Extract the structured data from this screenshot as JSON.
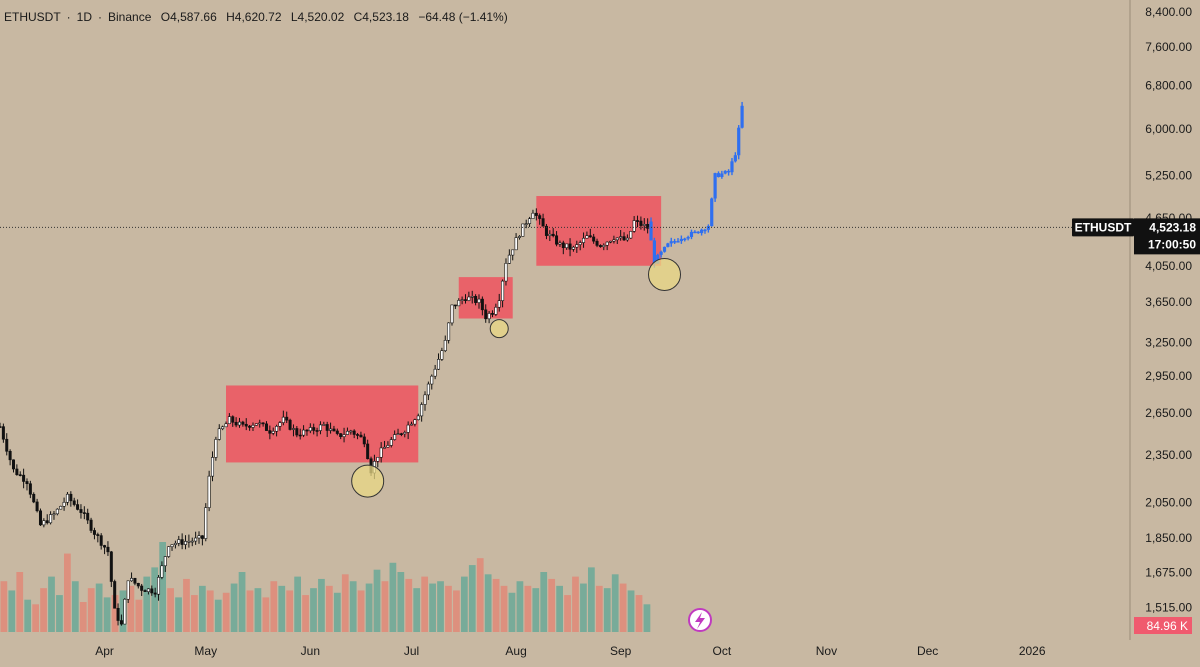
{
  "header": {
    "symbol": "ETHUSDT",
    "sep1": "·",
    "interval": "1D",
    "sep2": "·",
    "exchange": "Binance",
    "open": "O4,587.66",
    "high": "H4,620.72",
    "low": "L4,520.02",
    "close": "C4,523.18",
    "change": "−64.48 (−1.41%)"
  },
  "colors": {
    "background": "#c8b8a2",
    "candle": "#111111",
    "projection": "#2f6ff0",
    "zone": "#ec5a64",
    "circle_fill": "#ead884",
    "circle_stroke": "#333333",
    "vol_up": "#6aa898",
    "vol_down": "#e08878"
  },
  "chart_data": {
    "type": "candlestick",
    "symbol": "ETHUSDT",
    "interval": "1D",
    "exchange": "Binance",
    "y_scale": "log",
    "ylim": [
      1380,
      8700
    ],
    "y_ticks": [
      "8,400.00",
      "7,600.00",
      "6,800.00",
      "6,000.00",
      "5,250.00",
      "4,650.00",
      "4,050.00",
      "3,650.00",
      "3,250.00",
      "2,950.00",
      "2,650.00",
      "2,350.00",
      "2,050.00",
      "1,850.00",
      "1,675.00",
      "1,515.00"
    ],
    "y_tick_values": [
      8400,
      7600,
      6800,
      6000,
      5250,
      4650,
      4050,
      3650,
      3250,
      2950,
      2650,
      2350,
      2050,
      1850,
      1675,
      1515
    ],
    "x_ticks": [
      "Apr",
      "May",
      "Jun",
      "Jul",
      "Aug",
      "Sep",
      "Oct",
      "Nov",
      "Dec",
      "2026"
    ],
    "x_tick_days": [
      31,
      61,
      92,
      122,
      153,
      184,
      214,
      245,
      275,
      306
    ],
    "last_price": "4,523.18",
    "last_price_value": 4523.18,
    "countdown": "17:00:50",
    "symbol_tag": "ETHUSDT",
    "volume_label": "84.96 K",
    "price_series": [
      [
        0,
        2550
      ],
      [
        4,
        2250
      ],
      [
        8,
        2180
      ],
      [
        12,
        1920
      ],
      [
        16,
        1980
      ],
      [
        20,
        2080
      ],
      [
        24,
        2000
      ],
      [
        28,
        1880
      ],
      [
        32,
        1780
      ],
      [
        34,
        1500
      ],
      [
        36,
        1440
      ],
      [
        38,
        1650
      ],
      [
        42,
        1600
      ],
      [
        46,
        1590
      ],
      [
        50,
        1820
      ],
      [
        54,
        1830
      ],
      [
        58,
        1840
      ],
      [
        60,
        1850
      ],
      [
        62,
        2200
      ],
      [
        64,
        2480
      ],
      [
        68,
        2600
      ],
      [
        72,
        2550
      ],
      [
        76,
        2580
      ],
      [
        80,
        2520
      ],
      [
        84,
        2600
      ],
      [
        88,
        2500
      ],
      [
        92,
        2520
      ],
      [
        96,
        2560
      ],
      [
        100,
        2480
      ],
      [
        104,
        2520
      ],
      [
        108,
        2450
      ],
      [
        110,
        2250
      ],
      [
        112,
        2350
      ],
      [
        116,
        2450
      ],
      [
        120,
        2530
      ],
      [
        124,
        2650
      ],
      [
        128,
        2950
      ],
      [
        132,
        3250
      ],
      [
        134,
        3600
      ],
      [
        138,
        3700
      ],
      [
        142,
        3650
      ],
      [
        144,
        3500
      ],
      [
        146,
        3550
      ],
      [
        148,
        3700
      ],
      [
        150,
        4100
      ],
      [
        154,
        4450
      ],
      [
        158,
        4750
      ],
      [
        162,
        4450
      ],
      [
        166,
        4300
      ],
      [
        170,
        4250
      ],
      [
        174,
        4400
      ],
      [
        178,
        4300
      ],
      [
        182,
        4400
      ],
      [
        186,
        4350
      ],
      [
        188,
        4600
      ],
      [
        192,
        4520
      ]
    ],
    "projection_series": [
      [
        192,
        4600
      ],
      [
        194,
        4100
      ],
      [
        198,
        4300
      ],
      [
        202,
        4400
      ],
      [
        206,
        4450
      ],
      [
        210,
        4550
      ],
      [
        212,
        5250
      ],
      [
        216,
        5300
      ],
      [
        218,
        5600
      ],
      [
        220,
        6400
      ]
    ],
    "zones": [
      {
        "x0": 67,
        "x1": 124,
        "y_low": 2300,
        "y_high": 2870
      },
      {
        "x0": 136,
        "x1": 152,
        "y_low": 3480,
        "y_high": 3920
      },
      {
        "x0": 159,
        "x1": 196,
        "y_low": 4050,
        "y_high": 4950
      }
    ],
    "circled_lows": [
      {
        "x": 109,
        "price": 2180
      },
      {
        "x": 148,
        "price": 3380
      },
      {
        "x": 197,
        "price": 3950
      }
    ],
    "volume": [
      2.2,
      1.8,
      2.6,
      1.4,
      1.2,
      1.9,
      2.4,
      1.6,
      3.4,
      2.2,
      1.3,
      1.9,
      2.1,
      1.5,
      1.6,
      1.8,
      2.0,
      1.4,
      2.4,
      2.8,
      3.9,
      1.9,
      1.5,
      2.3,
      1.6,
      2.0,
      1.8,
      1.4,
      1.7,
      2.1,
      2.6,
      1.8,
      1.9,
      1.5,
      2.2,
      2.0,
      1.8,
      2.4,
      1.6,
      1.9,
      2.3,
      2.0,
      1.7,
      2.5,
      2.2,
      1.8,
      2.1,
      2.7,
      2.2,
      3.0,
      2.6,
      2.3,
      1.9,
      2.4,
      2.1,
      2.2,
      2.0,
      1.8,
      2.4,
      2.9,
      3.2,
      2.5,
      2.3,
      2.0,
      1.7,
      2.2,
      2.0,
      1.9,
      2.6,
      2.3,
      2.0,
      1.6,
      2.4,
      2.1,
      2.8,
      2.0,
      1.9,
      2.5,
      2.1,
      1.8,
      1.6,
      1.2
    ],
    "volume_up": [
      0,
      1,
      0,
      1,
      0,
      0,
      1,
      1,
      0,
      1,
      0,
      0,
      1,
      1,
      0,
      1,
      0,
      0,
      1,
      1,
      1,
      0,
      1,
      0,
      0,
      1,
      0,
      1,
      0,
      1,
      1,
      0,
      1,
      0,
      0,
      1,
      0,
      1,
      0,
      1,
      1,
      0,
      1,
      0,
      1,
      0,
      1,
      1,
      0,
      1,
      1,
      0,
      1,
      0,
      1,
      1,
      0,
      0,
      1,
      1,
      0,
      1,
      0,
      0,
      1,
      1,
      0,
      1,
      1,
      0,
      1,
      0,
      0,
      1,
      1,
      0,
      1,
      1,
      0,
      1,
      0,
      1
    ]
  }
}
